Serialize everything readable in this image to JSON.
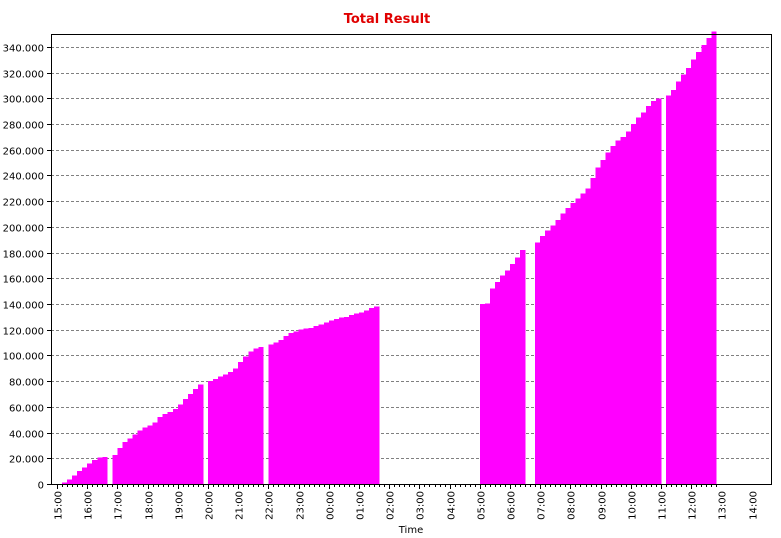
{
  "chart_data": {
    "type": "bar",
    "title": "Total Result",
    "xlabel": "Time",
    "ylabel": "",
    "ylim": [
      0,
      350000
    ],
    "grid": "horizontal-dashed",
    "colors": {
      "bar": "#ff00ff",
      "title": "#e00000",
      "grid": "#808080",
      "axis": "#000000"
    },
    "yticks": [
      0,
      20000,
      40000,
      60000,
      80000,
      100000,
      120000,
      140000,
      160000,
      180000,
      200000,
      220000,
      240000,
      260000,
      280000,
      300000,
      320000,
      340000
    ],
    "ytick_labels": [
      "0",
      "20.000",
      "40.000",
      "60.000",
      "80.000",
      "100.000",
      "120.000",
      "140.000",
      "160.000",
      "180.000",
      "200.000",
      "220.000",
      "240.000",
      "260.000",
      "280.000",
      "300.000",
      "320.000",
      "340.000"
    ],
    "xtick_labels": [
      "15:00",
      "16:00",
      "17:00",
      "18:00",
      "19:00",
      "20:00",
      "21:00",
      "22:00",
      "23:00",
      "00:00",
      "01:00",
      "02:00",
      "03:00",
      "04:00",
      "05:00",
      "06:00",
      "07:00",
      "08:00",
      "09:00",
      "10:00",
      "11:00",
      "12:00",
      "13:00",
      "14:00"
    ],
    "interval_minutes": 10,
    "start_label": "15:00",
    "values": [
      0,
      1000,
      3500,
      6500,
      10000,
      13000,
      16000,
      18500,
      20500,
      21000,
      0,
      22500,
      28000,
      32500,
      35500,
      38500,
      41500,
      44000,
      45500,
      48000,
      52000,
      54500,
      56000,
      58500,
      62000,
      66000,
      70000,
      74000,
      77500,
      0,
      80000,
      81500,
      83500,
      85000,
      87000,
      90000,
      95000,
      99000,
      103000,
      105500,
      106500,
      0,
      108500,
      110000,
      112000,
      115000,
      117500,
      118500,
      120000,
      121000,
      121500,
      123000,
      124000,
      125500,
      127000,
      128500,
      129500,
      130000,
      131500,
      132500,
      133500,
      135000,
      137000,
      138000,
      0,
      0,
      0,
      0,
      0,
      0,
      0,
      0,
      0,
      0,
      0,
      0,
      0,
      0,
      0,
      0,
      0,
      0,
      0,
      0,
      140000,
      140500,
      152000,
      157000,
      162000,
      166000,
      171000,
      176000,
      182000,
      0,
      0,
      188000,
      193000,
      197000,
      201000,
      205500,
      210500,
      214500,
      218500,
      222000,
      226000,
      230000,
      238000,
      246000,
      252000,
      258000,
      263000,
      267000,
      270000,
      274000,
      280000,
      285000,
      289000,
      294000,
      298000,
      300000,
      0,
      302000,
      306500,
      313000,
      318500,
      323500,
      330000,
      336000,
      341500,
      347000,
      352000
    ]
  }
}
